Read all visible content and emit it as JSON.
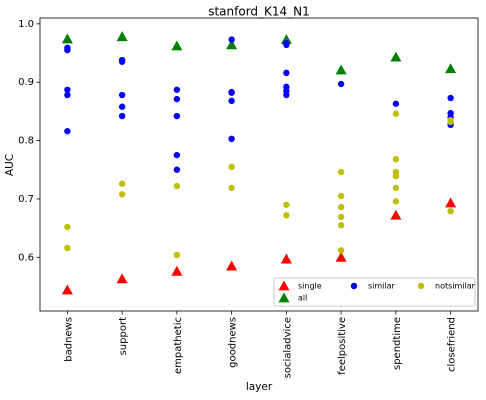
{
  "chart_data": {
    "type": "scatter",
    "title": "stanford_K14_N1",
    "x_label": "layer",
    "y_label": "AUC",
    "categories": [
      "badnews",
      "support",
      "empathetic",
      "goodnews",
      "socialadvice",
      "feelpositive",
      "spendtime",
      "closefriend"
    ],
    "ylim": [
      0.508,
      1.01
    ],
    "yticks": [
      0.6,
      0.7,
      0.8,
      0.9,
      {
        "value": 1,
        "label": "1.0"
      }
    ],
    "legend": "lower right",
    "series": [
      {
        "name": "single",
        "color": "#ff0000",
        "marker": "triangle",
        "x": [
          "badnews",
          "support",
          "empathetic",
          "goodnews",
          "socialadvice",
          "feelpositive",
          "spendtime",
          "closefriend"
        ],
        "values": [
          0.544,
          0.563,
          0.576,
          0.585,
          0.597,
          0.6,
          0.672,
          0.693
        ]
      },
      {
        "name": "all",
        "color": "#008000",
        "marker": "triangle",
        "x": [
          "badnews",
          "support",
          "empathetic",
          "goodnews",
          "socialadvice",
          "feelpositive",
          "spendtime",
          "closefriend"
        ],
        "values": [
          0.974,
          0.978,
          0.962,
          0.964,
          0.973,
          0.921,
          0.943,
          0.923
        ]
      },
      {
        "name": "similar",
        "color": "#0000ff",
        "marker": "circle",
        "x": [
          "badnews",
          "badnews",
          "badnews",
          "badnews",
          "badnews",
          "support",
          "support",
          "support",
          "support",
          "support",
          "empathetic",
          "empathetic",
          "empathetic",
          "empathetic",
          "empathetic",
          "goodnews",
          "goodnews",
          "goodnews",
          "goodnews",
          "goodnews",
          "socialadvice",
          "socialadvice",
          "socialadvice",
          "socialadvice",
          "socialadvice",
          "socialadvice",
          "feelpositive",
          "spendtime",
          "closefriend",
          "closefriend",
          "closefriend",
          "closefriend"
        ],
        "values": [
          0.959,
          0.955,
          0.887,
          0.878,
          0.816,
          0.938,
          0.935,
          0.878,
          0.858,
          0.842,
          0.887,
          0.871,
          0.842,
          0.775,
          0.75,
          0.973,
          0.883,
          0.882,
          0.868,
          0.803,
          0.967,
          0.964,
          0.916,
          0.892,
          0.885,
          0.878,
          0.897,
          0.863,
          0.873,
          0.847,
          0.84,
          0.827
        ]
      },
      {
        "name": "notsimilar",
        "color": "#bfbf00",
        "marker": "circle",
        "x": [
          "badnews",
          "badnews",
          "support",
          "support",
          "empathetic",
          "empathetic",
          "goodnews",
          "goodnews",
          "socialadvice",
          "socialadvice",
          "feelpositive",
          "feelpositive",
          "feelpositive",
          "feelpositive",
          "feelpositive",
          "feelpositive",
          "spendtime",
          "spendtime",
          "spendtime",
          "spendtime",
          "spendtime",
          "spendtime",
          "closefriend",
          "closefriend",
          "closefriend"
        ],
        "values": [
          0.652,
          0.616,
          0.726,
          0.708,
          0.722,
          0.604,
          0.755,
          0.719,
          0.69,
          0.672,
          0.746,
          0.705,
          0.686,
          0.669,
          0.655,
          0.612,
          0.846,
          0.768,
          0.746,
          0.739,
          0.719,
          0.696,
          0.835,
          0.832,
          0.679
        ]
      }
    ]
  }
}
